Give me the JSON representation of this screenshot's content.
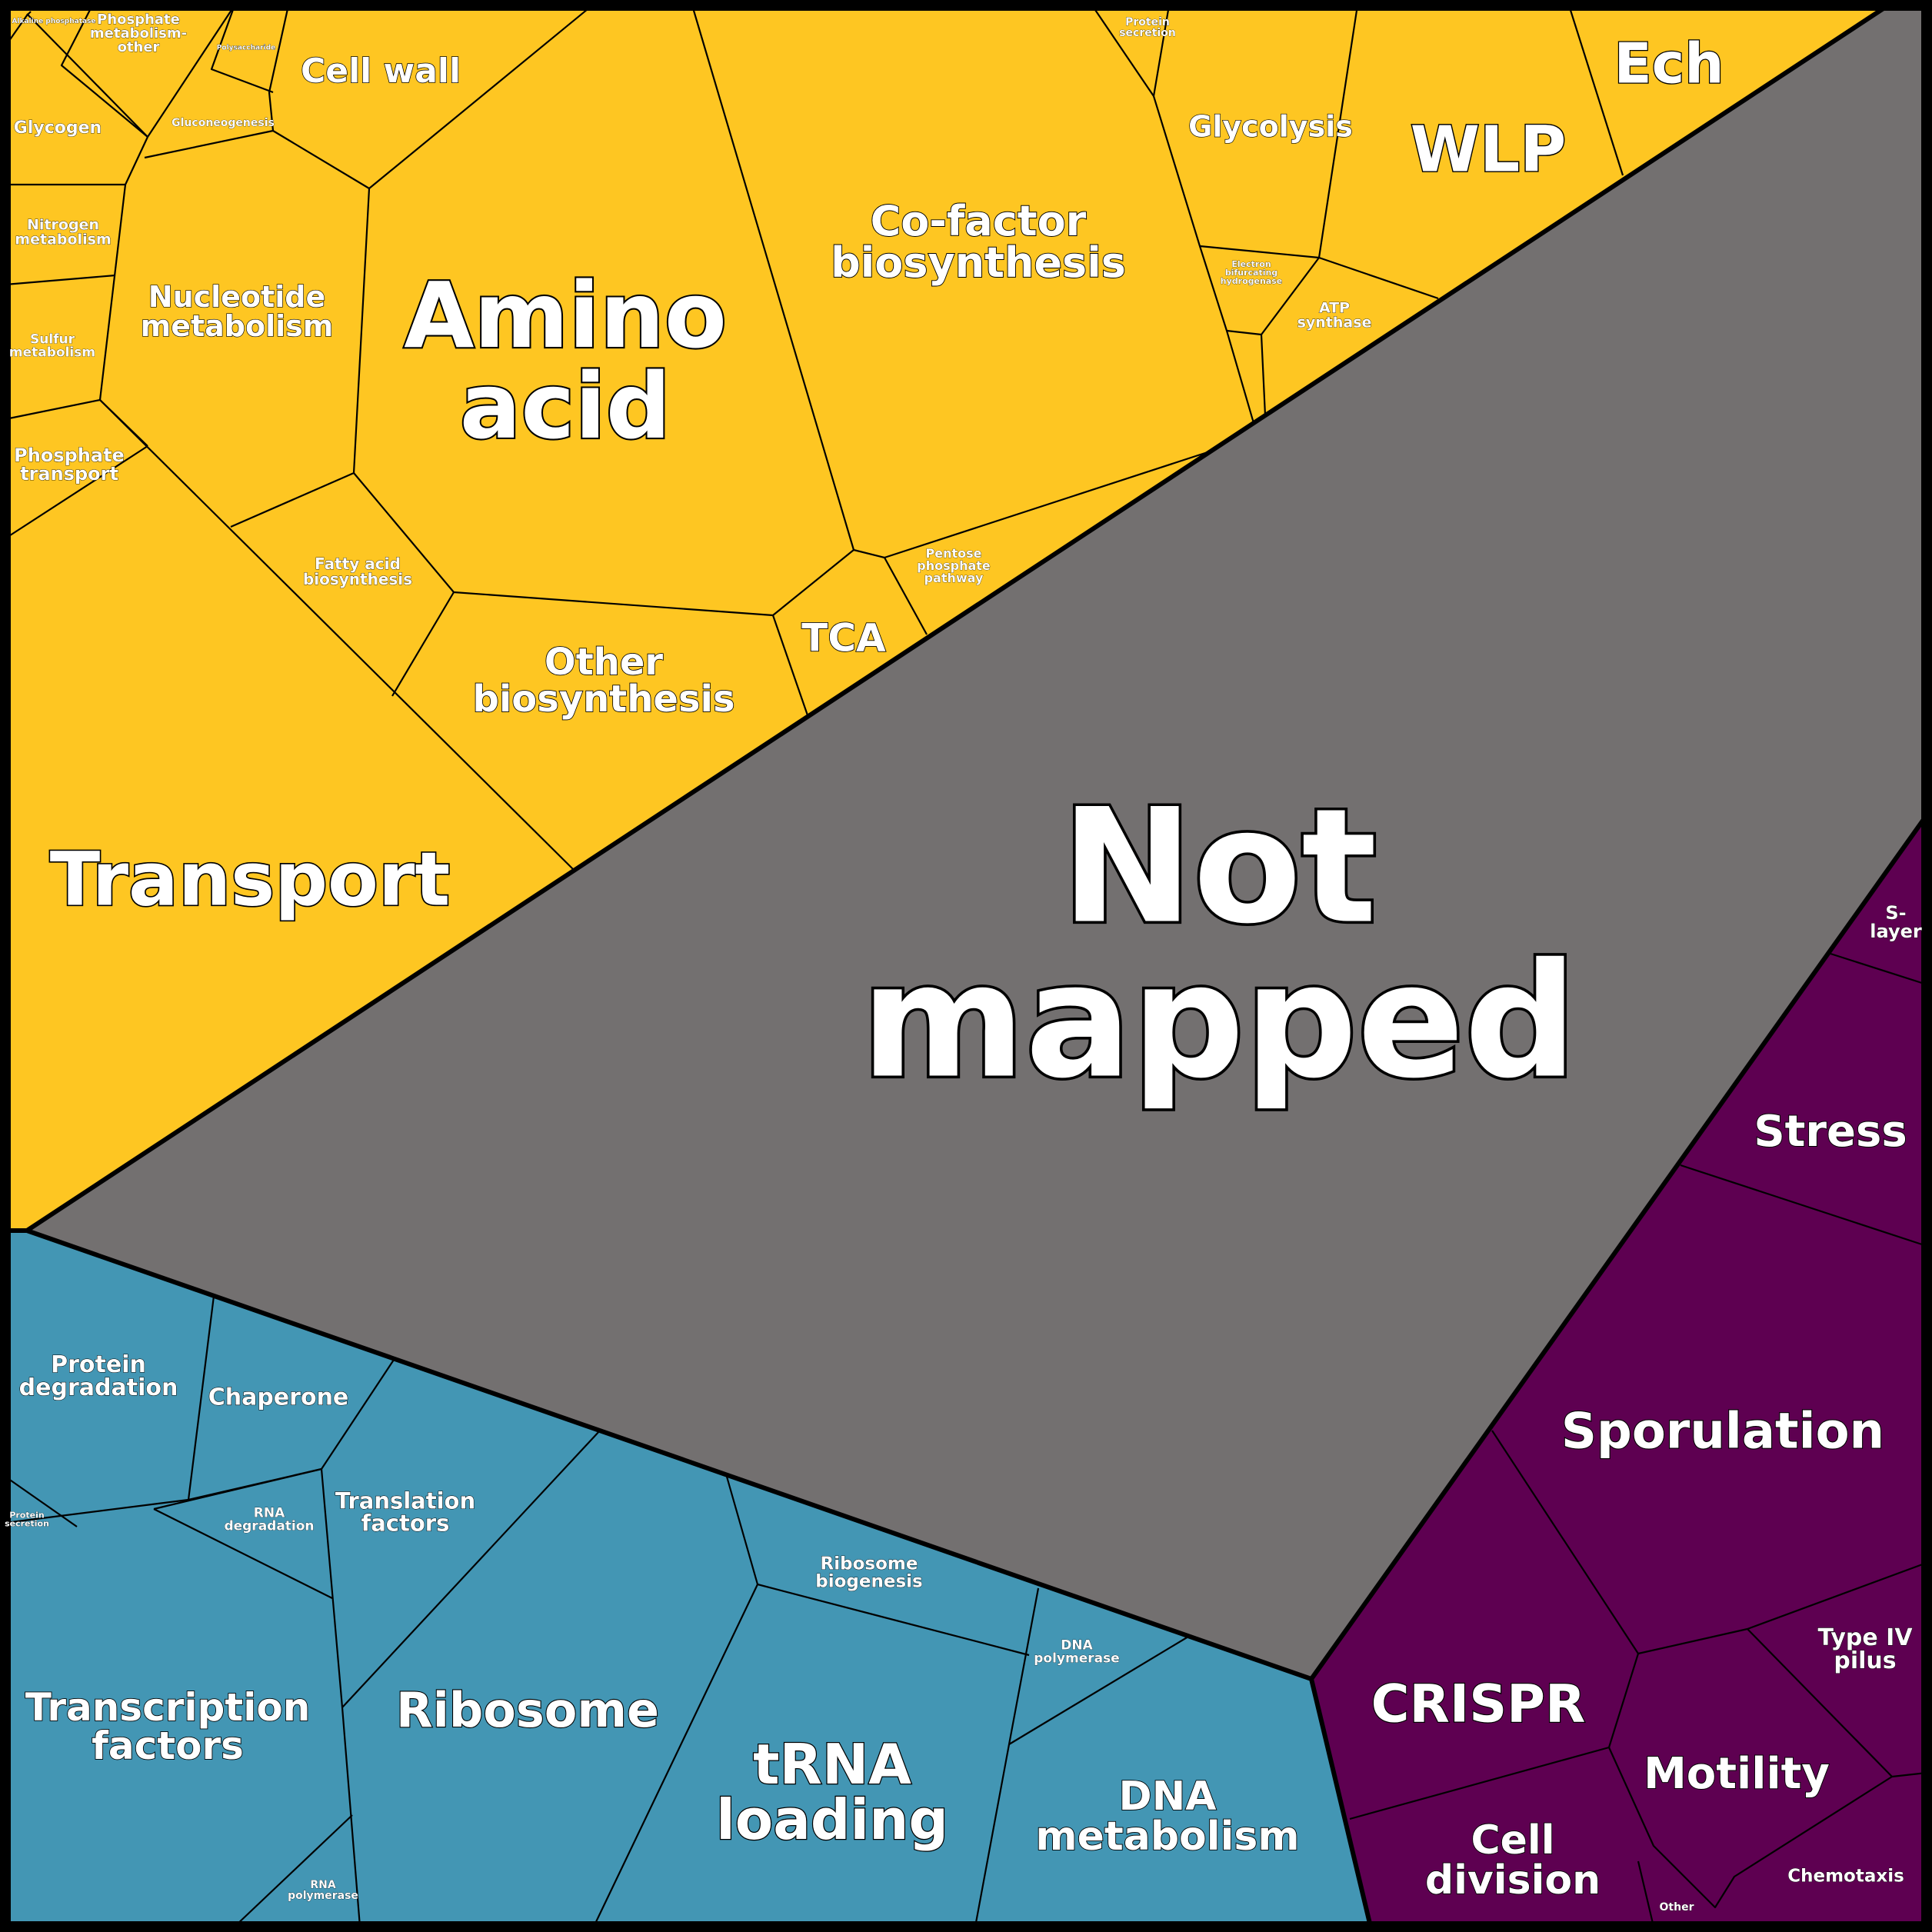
{
  "colors": {
    "metabolism": "#FEC622",
    "not_mapped": "#737070",
    "information": "#4396B4",
    "cellular": "#5E0051",
    "border": "#000000",
    "label": "#FFFFFF"
  },
  "groups": {
    "metabolism": {
      "cells": {
        "alkaline_phosphatase": "Alkaline phosphatase",
        "phosphate_metabolism_other": "Phosphate metabolism- other",
        "polysaccharide": "Polysaccharide",
        "cell_wall": "Cell wall",
        "glycogen": "Glycogen",
        "gluconeogenesis": "Gluconeogenesis",
        "nitrogen_metabolism": "Nitrogen metabolism",
        "sulfur_metabolism": "Sulfur metabolism",
        "nucleotide_metabolism": "Nucleotide metabolism",
        "amino_acid": "Amino acid",
        "co_factor_biosynthesis": "Co-factor biosynthesis",
        "protein_secretion": "Protein secretion",
        "glycolysis": "Glycolysis",
        "wlp": "WLP",
        "ech": "Ech",
        "electron_bifurcating_hydrogenase": "Electron bifurcating hydrogenase",
        "atp_synthase": "ATP synthase",
        "phosphate_transport": "Phosphate transport",
        "fatty_acid_biosynthesis": "Fatty acid biosynthesis",
        "pentose_phosphate_pathway": "Pentose phosphate pathway",
        "tca": "TCA",
        "other_biosynthesis": "Other biosynthesis",
        "transport": "Transport"
      }
    },
    "not_mapped": {
      "label": "Not mapped"
    },
    "information": {
      "cells": {
        "protein_degradation": "Protein degradation",
        "chaperone": "Chaperone",
        "protein_secretion": "Protein secretion",
        "rna_degradation": "RNA degradation",
        "translation_factors": "Translation factors",
        "ribosome_biogenesis": "Ribosome biogenesis",
        "dna_polymerase": "DNA polymerase",
        "transcription_factors": "Transcription factors",
        "ribosome": "Ribosome",
        "trna_loading": "tRNA loading",
        "dna_metabolism": "DNA metabolism",
        "rna_polymerase": "RNA polymerase"
      }
    },
    "cellular": {
      "cells": {
        "s_layer": "S- layer",
        "stress": "Stress",
        "sporulation": "Sporulation",
        "type_iv_pilus": "Type IV pilus",
        "crispr": "CRISPR",
        "motility": "Motility",
        "cell_division": "Cell division",
        "chemotaxis": "Chemotaxis",
        "other": "Other"
      }
    }
  }
}
